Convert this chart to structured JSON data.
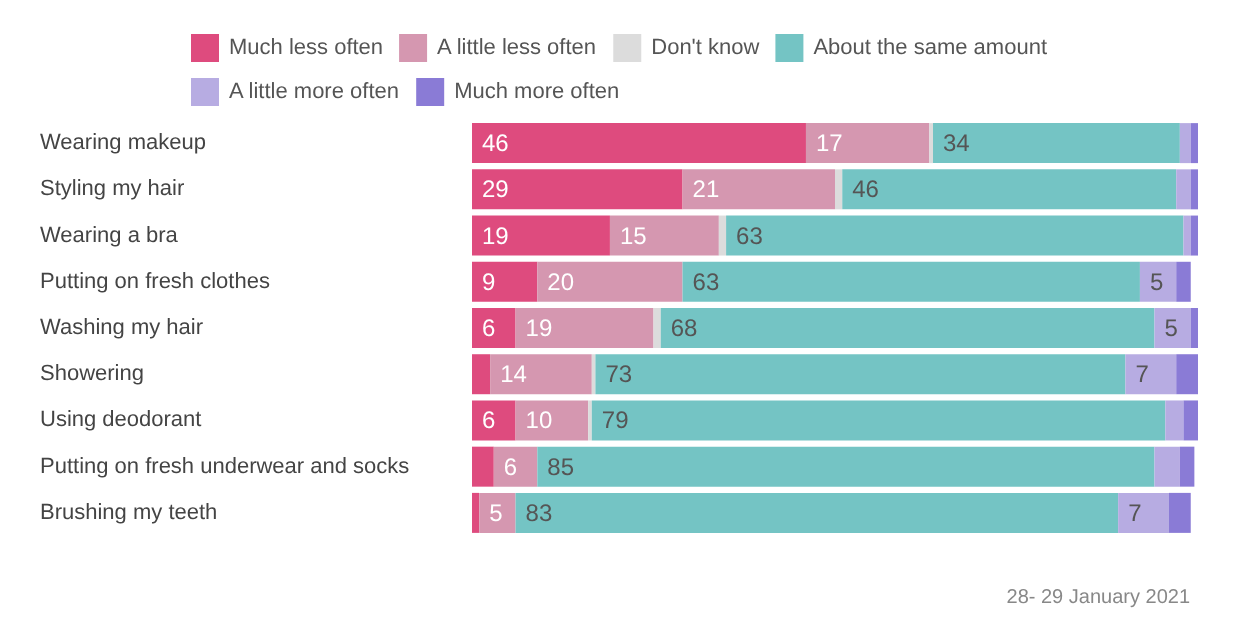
{
  "chart_data": {
    "type": "bar",
    "orientation": "horizontal",
    "stacked": true,
    "categories": [
      "Wearing makeup",
      "Styling my hair",
      "Wearing a bra",
      "Putting on fresh clothes",
      "Washing my hair",
      "Showering",
      "Using deodorant",
      "Putting on fresh underwear and socks",
      "Brushing my teeth"
    ],
    "series": [
      {
        "name": "Much less often",
        "color": "#de4b7e",
        "values": [
          46,
          29,
          19,
          9,
          6,
          2.5,
          6,
          3,
          1
        ],
        "value_labels": [
          "46",
          "29",
          "19",
          "9",
          "6",
          null,
          "6",
          null,
          null
        ]
      },
      {
        "name": "A little less often",
        "color": "#d597b0",
        "values": [
          17,
          21,
          15,
          20,
          19,
          14,
          10,
          6,
          5
        ],
        "value_labels": [
          "17",
          "21",
          "15",
          "20",
          "19",
          "14",
          "10",
          "6",
          "5"
        ]
      },
      {
        "name": "Don't know",
        "color": "#dcdcdc",
        "values": [
          0.5,
          1,
          1,
          null,
          1,
          0.5,
          0.5,
          null,
          null
        ],
        "value_labels": [
          null,
          null,
          null,
          null,
          null,
          null,
          null,
          null,
          null
        ]
      },
      {
        "name": "About the same amount",
        "color": "#74c4c4",
        "values": [
          34,
          46,
          63,
          63,
          68,
          73,
          79,
          85,
          83
        ],
        "value_labels": [
          "34",
          "46",
          "63",
          "63",
          "68",
          "73",
          "79",
          "85",
          "83"
        ]
      },
      {
        "name": "A little more often",
        "color": "#b7ace2",
        "values": [
          1.5,
          2,
          1,
          5,
          5,
          7,
          2.5,
          3.5,
          7
        ],
        "value_labels": [
          null,
          null,
          null,
          "5",
          "5",
          "7",
          null,
          null,
          "7"
        ]
      },
      {
        "name": "Much more often",
        "color": "#8a7bd6",
        "values": [
          1,
          1,
          1,
          2,
          1,
          3,
          2,
          2,
          3
        ],
        "value_labels": [
          null,
          null,
          null,
          null,
          null,
          null,
          null,
          null,
          null
        ]
      }
    ],
    "xlim": [
      0,
      100
    ],
    "tick_labels": "y",
    "legend": "top",
    "annotations": [
      "28- 29 January 2021"
    ]
  }
}
